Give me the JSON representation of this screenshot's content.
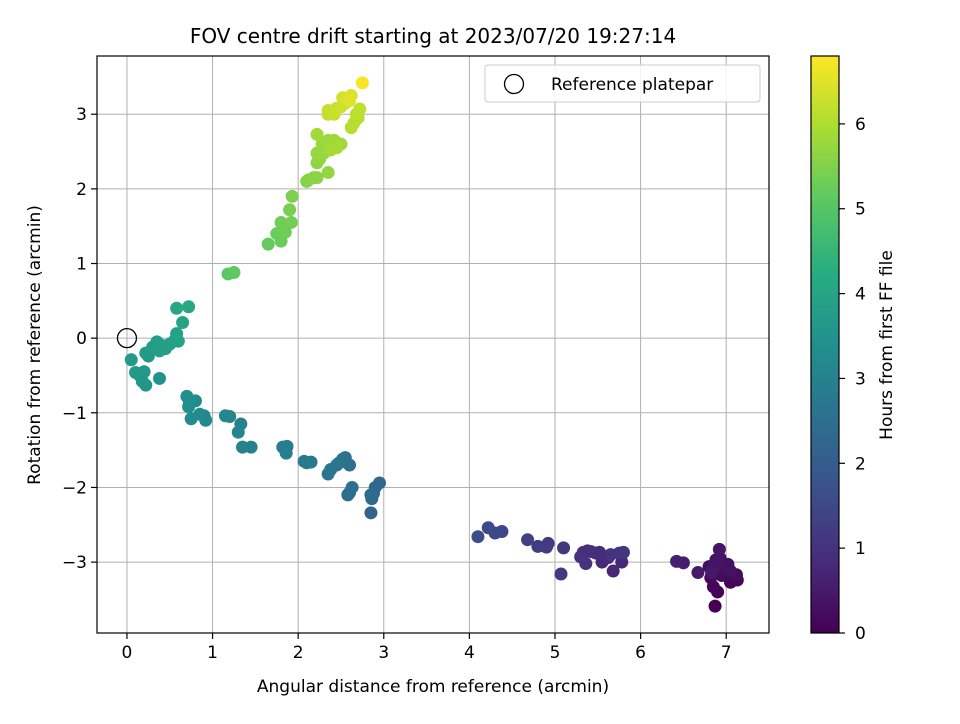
{
  "chart_data": {
    "type": "scatter",
    "title": "FOV centre drift starting at 2023/07/20 19:27:14",
    "xlabel": "Angular distance from reference (arcmin)",
    "ylabel": "Rotation from reference (arcmin)",
    "xlim": [
      -0.35,
      7.5
    ],
    "ylim": [
      -3.95,
      3.78
    ],
    "xticks": [
      0,
      1,
      2,
      3,
      4,
      5,
      6,
      7
    ],
    "xtick_labels": [
      "0",
      "1",
      "2",
      "3",
      "4",
      "5",
      "6",
      "7"
    ],
    "yticks": [
      -3,
      -2,
      -1,
      0,
      1,
      2,
      3
    ],
    "ytick_labels": [
      "−3",
      "−2",
      "−1",
      "0",
      "1",
      "2",
      "3"
    ],
    "grid": true,
    "colormap": "viridis",
    "colorbar": {
      "label": "Hours from first FF file",
      "range": [
        0,
        6.8
      ],
      "ticks": [
        0,
        1,
        2,
        3,
        4,
        5,
        6
      ],
      "tick_labels": [
        "0",
        "1",
        "2",
        "3",
        "4",
        "5",
        "6"
      ]
    },
    "legend": {
      "position": "top-right",
      "entries": [
        "Reference platepar"
      ]
    },
    "reference_point": {
      "x": 0,
      "y": 0,
      "marker": "open-circle",
      "color": "#000000"
    },
    "points": [
      {
        "x": 6.87,
        "y": -3.59,
        "h": 0.0
      },
      {
        "x": 6.9,
        "y": -3.4,
        "h": 0.05
      },
      {
        "x": 6.85,
        "y": -3.33,
        "h": 0.08
      },
      {
        "x": 7.05,
        "y": -3.27,
        "h": 0.1
      },
      {
        "x": 7.13,
        "y": -3.24,
        "h": 0.13
      },
      {
        "x": 6.82,
        "y": -3.21,
        "h": 0.15
      },
      {
        "x": 6.95,
        "y": -3.18,
        "h": 0.18
      },
      {
        "x": 7.12,
        "y": -3.17,
        "h": 0.2
      },
      {
        "x": 6.8,
        "y": -3.06,
        "h": 0.23
      },
      {
        "x": 6.9,
        "y": -3.03,
        "h": 0.25
      },
      {
        "x": 7.02,
        "y": -3.03,
        "h": 0.28
      },
      {
        "x": 6.97,
        "y": -3.08,
        "h": 0.3
      },
      {
        "x": 7.05,
        "y": -3.12,
        "h": 0.33
      },
      {
        "x": 6.88,
        "y": -2.97,
        "h": 0.35
      },
      {
        "x": 6.93,
        "y": -2.95,
        "h": 0.38
      },
      {
        "x": 6.92,
        "y": -2.83,
        "h": 0.4
      },
      {
        "x": 6.85,
        "y": -3.1,
        "h": 0.42
      },
      {
        "x": 6.83,
        "y": -3.14,
        "h": 0.45
      },
      {
        "x": 6.67,
        "y": -3.14,
        "h": 0.5
      },
      {
        "x": 6.5,
        "y": -3.01,
        "h": 0.55
      },
      {
        "x": 6.42,
        "y": -2.99,
        "h": 0.6
      },
      {
        "x": 5.68,
        "y": -3.12,
        "h": 0.75
      },
      {
        "x": 5.78,
        "y": -3.0,
        "h": 0.78
      },
      {
        "x": 5.62,
        "y": -2.94,
        "h": 0.8
      },
      {
        "x": 5.55,
        "y": -3.0,
        "h": 0.82
      },
      {
        "x": 5.52,
        "y": -2.87,
        "h": 0.85
      },
      {
        "x": 5.48,
        "y": -2.88,
        "h": 0.87
      },
      {
        "x": 5.42,
        "y": -2.86,
        "h": 0.9
      },
      {
        "x": 5.38,
        "y": -2.85,
        "h": 0.92
      },
      {
        "x": 5.33,
        "y": -2.87,
        "h": 0.95
      },
      {
        "x": 5.3,
        "y": -2.93,
        "h": 0.97
      },
      {
        "x": 5.36,
        "y": -3.02,
        "h": 1.0
      },
      {
        "x": 5.65,
        "y": -2.9,
        "h": 1.02
      },
      {
        "x": 5.75,
        "y": -2.88,
        "h": 1.05
      },
      {
        "x": 5.8,
        "y": -2.87,
        "h": 1.07
      },
      {
        "x": 5.1,
        "y": -2.81,
        "h": 1.12
      },
      {
        "x": 5.07,
        "y": -3.16,
        "h": 1.15
      },
      {
        "x": 4.92,
        "y": -2.75,
        "h": 1.2
      },
      {
        "x": 4.9,
        "y": -2.8,
        "h": 1.22
      },
      {
        "x": 4.8,
        "y": -2.79,
        "h": 1.25
      },
      {
        "x": 4.68,
        "y": -2.7,
        "h": 1.3
      },
      {
        "x": 4.38,
        "y": -2.59,
        "h": 1.45
      },
      {
        "x": 4.3,
        "y": -2.61,
        "h": 1.5
      },
      {
        "x": 4.22,
        "y": -2.54,
        "h": 1.55
      },
      {
        "x": 4.1,
        "y": -2.66,
        "h": 1.6
      },
      {
        "x": 2.85,
        "y": -2.34,
        "h": 2.2
      },
      {
        "x": 2.86,
        "y": -2.15,
        "h": 2.25
      },
      {
        "x": 2.88,
        "y": -2.08,
        "h": 2.3
      },
      {
        "x": 2.9,
        "y": -2.0,
        "h": 2.32
      },
      {
        "x": 2.95,
        "y": -1.94,
        "h": 2.35
      },
      {
        "x": 2.85,
        "y": -2.1,
        "h": 2.4
      },
      {
        "x": 2.6,
        "y": -2.07,
        "h": 2.45
      },
      {
        "x": 2.58,
        "y": -2.1,
        "h": 2.47
      },
      {
        "x": 2.63,
        "y": -2.0,
        "h": 2.5
      },
      {
        "x": 2.6,
        "y": -1.7,
        "h": 2.55
      },
      {
        "x": 2.55,
        "y": -1.6,
        "h": 2.57
      },
      {
        "x": 2.52,
        "y": -1.62,
        "h": 2.6
      },
      {
        "x": 2.48,
        "y": -1.67,
        "h": 2.62
      },
      {
        "x": 2.45,
        "y": -1.7,
        "h": 2.65
      },
      {
        "x": 2.38,
        "y": -1.76,
        "h": 2.67
      },
      {
        "x": 2.35,
        "y": -1.82,
        "h": 2.7
      },
      {
        "x": 2.15,
        "y": -1.66,
        "h": 2.75
      },
      {
        "x": 2.1,
        "y": -1.67,
        "h": 2.77
      },
      {
        "x": 2.07,
        "y": -1.65,
        "h": 2.8
      },
      {
        "x": 1.87,
        "y": -1.45,
        "h": 2.85
      },
      {
        "x": 1.85,
        "y": -1.47,
        "h": 2.87
      },
      {
        "x": 1.82,
        "y": -1.46,
        "h": 2.9
      },
      {
        "x": 1.86,
        "y": -1.54,
        "h": 2.92
      },
      {
        "x": 1.45,
        "y": -1.46,
        "h": 3.0
      },
      {
        "x": 1.35,
        "y": -1.46,
        "h": 3.02
      },
      {
        "x": 1.33,
        "y": -1.15,
        "h": 3.05
      },
      {
        "x": 1.3,
        "y": -1.26,
        "h": 3.07
      },
      {
        "x": 1.2,
        "y": -1.05,
        "h": 3.1
      },
      {
        "x": 1.15,
        "y": -1.04,
        "h": 3.12
      },
      {
        "x": 0.92,
        "y": -1.1,
        "h": 3.2
      },
      {
        "x": 0.9,
        "y": -1.04,
        "h": 3.22
      },
      {
        "x": 0.85,
        "y": -1.02,
        "h": 3.25
      },
      {
        "x": 0.8,
        "y": -0.84,
        "h": 3.27
      },
      {
        "x": 0.75,
        "y": -1.08,
        "h": 3.3
      },
      {
        "x": 0.72,
        "y": -0.92,
        "h": 3.32
      },
      {
        "x": 0.7,
        "y": -0.78,
        "h": 3.35
      },
      {
        "x": 0.73,
        "y": -0.85,
        "h": 3.37
      },
      {
        "x": 0.38,
        "y": -0.54,
        "h": 3.5
      },
      {
        "x": 0.22,
        "y": -0.63,
        "h": 3.55
      },
      {
        "x": 0.18,
        "y": -0.58,
        "h": 3.57
      },
      {
        "x": 0.15,
        "y": -0.5,
        "h": 3.6
      },
      {
        "x": 0.2,
        "y": -0.45,
        "h": 3.62
      },
      {
        "x": 0.1,
        "y": -0.46,
        "h": 3.65
      },
      {
        "x": 0.05,
        "y": -0.29,
        "h": 3.67
      },
      {
        "x": 0.25,
        "y": -0.24,
        "h": 3.7
      },
      {
        "x": 0.22,
        "y": -0.2,
        "h": 3.72
      },
      {
        "x": 0.3,
        "y": -0.12,
        "h": 3.75
      },
      {
        "x": 0.35,
        "y": -0.05,
        "h": 3.78
      },
      {
        "x": 0.38,
        "y": -0.17,
        "h": 3.8
      },
      {
        "x": 0.42,
        "y": -0.1,
        "h": 3.82
      },
      {
        "x": 0.45,
        "y": -0.14,
        "h": 3.85
      },
      {
        "x": 0.5,
        "y": -0.08,
        "h": 3.88
      },
      {
        "x": 0.55,
        "y": -0.04,
        "h": 3.9
      },
      {
        "x": 0.58,
        "y": 0.06,
        "h": 3.92
      },
      {
        "x": 0.6,
        "y": -0.04,
        "h": 3.95
      },
      {
        "x": 0.65,
        "y": 0.21,
        "h": 4.0
      },
      {
        "x": 0.58,
        "y": 0.4,
        "h": 4.05
      },
      {
        "x": 0.72,
        "y": 0.42,
        "h": 4.1
      },
      {
        "x": 1.18,
        "y": 0.86,
        "h": 5.1
      },
      {
        "x": 1.25,
        "y": 0.88,
        "h": 5.12
      },
      {
        "x": 1.65,
        "y": 1.26,
        "h": 5.2
      },
      {
        "x": 1.75,
        "y": 1.4,
        "h": 5.25
      },
      {
        "x": 1.8,
        "y": 1.3,
        "h": 5.27
      },
      {
        "x": 1.85,
        "y": 1.42,
        "h": 5.3
      },
      {
        "x": 1.8,
        "y": 1.55,
        "h": 5.32
      },
      {
        "x": 1.92,
        "y": 1.55,
        "h": 5.35
      },
      {
        "x": 1.9,
        "y": 1.72,
        "h": 5.4
      },
      {
        "x": 1.93,
        "y": 1.9,
        "h": 5.45
      },
      {
        "x": 2.1,
        "y": 2.1,
        "h": 5.55
      },
      {
        "x": 2.12,
        "y": 2.12,
        "h": 5.57
      },
      {
        "x": 2.18,
        "y": 2.15,
        "h": 5.6
      },
      {
        "x": 2.22,
        "y": 2.15,
        "h": 5.62
      },
      {
        "x": 2.22,
        "y": 2.35,
        "h": 5.65
      },
      {
        "x": 2.25,
        "y": 2.4,
        "h": 5.67
      },
      {
        "x": 2.35,
        "y": 2.22,
        "h": 5.7
      },
      {
        "x": 2.22,
        "y": 2.48,
        "h": 5.72
      },
      {
        "x": 2.3,
        "y": 2.48,
        "h": 5.75
      },
      {
        "x": 2.28,
        "y": 2.6,
        "h": 5.77
      },
      {
        "x": 2.35,
        "y": 2.65,
        "h": 5.8
      },
      {
        "x": 2.42,
        "y": 2.65,
        "h": 5.82
      },
      {
        "x": 2.5,
        "y": 2.6,
        "h": 5.85
      },
      {
        "x": 2.22,
        "y": 2.73,
        "h": 5.87
      },
      {
        "x": 2.38,
        "y": 2.52,
        "h": 5.9
      },
      {
        "x": 2.45,
        "y": 2.55,
        "h": 5.92
      },
      {
        "x": 2.62,
        "y": 2.82,
        "h": 6.05
      },
      {
        "x": 2.65,
        "y": 2.88,
        "h": 6.08
      },
      {
        "x": 2.7,
        "y": 2.95,
        "h": 6.1
      },
      {
        "x": 2.68,
        "y": 3.0,
        "h": 6.12
      },
      {
        "x": 2.72,
        "y": 3.07,
        "h": 6.15
      },
      {
        "x": 2.35,
        "y": 3.0,
        "h": 6.2
      },
      {
        "x": 2.35,
        "y": 3.05,
        "h": 6.22
      },
      {
        "x": 2.42,
        "y": 3.0,
        "h": 6.25
      },
      {
        "x": 2.45,
        "y": 3.08,
        "h": 6.28
      },
      {
        "x": 2.5,
        "y": 3.1,
        "h": 6.3
      },
      {
        "x": 2.55,
        "y": 3.15,
        "h": 6.32
      },
      {
        "x": 2.52,
        "y": 3.22,
        "h": 6.35
      },
      {
        "x": 2.58,
        "y": 3.2,
        "h": 6.4
      },
      {
        "x": 2.62,
        "y": 3.25,
        "h": 6.45
      },
      {
        "x": 2.6,
        "y": 3.18,
        "h": 6.5
      },
      {
        "x": 2.75,
        "y": 3.42,
        "h": 6.75
      }
    ]
  }
}
